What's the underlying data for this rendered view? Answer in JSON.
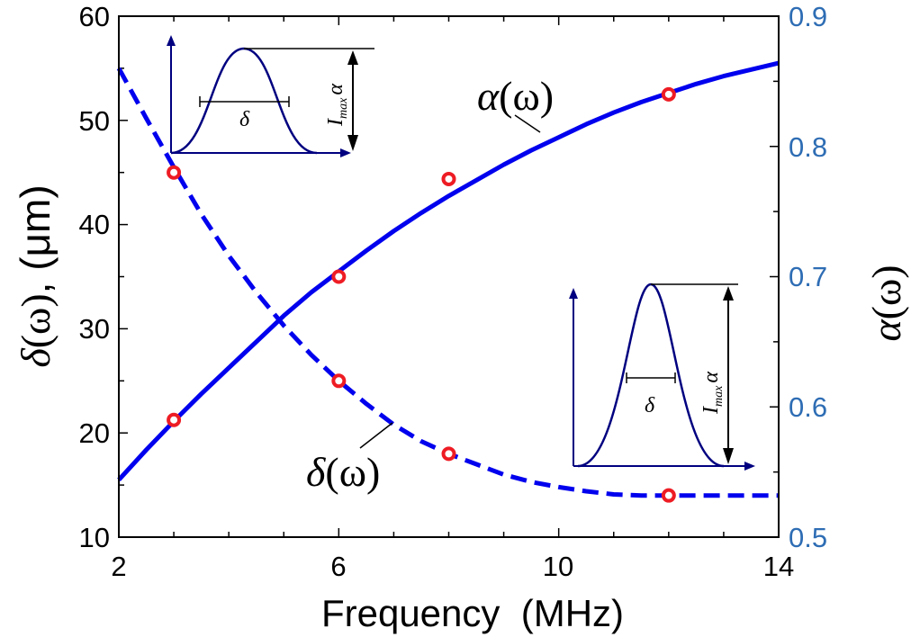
{
  "chart_data": {
    "type": "line",
    "xlabel": "Frequency  (MHz)",
    "ylabel_left": {
      "symbol": "δ",
      "arg": "(ω)",
      "unit": ", (μm)"
    },
    "ylabel_right": {
      "symbol": "α",
      "arg": "(ω)"
    },
    "xlim": [
      2,
      14
    ],
    "ylim_left": [
      10,
      60
    ],
    "ylim_right": [
      0.5,
      0.9
    ],
    "x_ticks": [
      "2",
      "6",
      "10",
      "14"
    ],
    "y_left_ticks": [
      "10",
      "20",
      "30",
      "40",
      "50",
      "60"
    ],
    "y_right_ticks": [
      "0.5",
      "0.6",
      "0.7",
      "0.8",
      "0.9"
    ],
    "colors": {
      "curve": "#0000ee",
      "markers": "#ee1c24",
      "right_axis": "#2e6db4",
      "axes": "#000000",
      "inset": "#000080"
    },
    "series": [
      {
        "name": "δ(ω)",
        "axis": "left",
        "style": "dashed",
        "x": [
          2,
          2.5,
          3,
          3.5,
          4,
          4.5,
          5,
          5.5,
          6,
          6.5,
          7,
          7.5,
          8,
          8.5,
          9,
          9.5,
          10,
          10.5,
          11,
          11.5,
          12,
          12.5,
          13,
          13.5,
          14
        ],
        "y": [
          55,
          50.2,
          45.5,
          41,
          37,
          33.5,
          30.3,
          27.5,
          25,
          22.8,
          20.8,
          19.2,
          18,
          17,
          16,
          15.3,
          14.8,
          14.4,
          14.1,
          14,
          14,
          14,
          14,
          14,
          14
        ]
      },
      {
        "name": "α(ω)",
        "axis": "right",
        "style": "solid",
        "x": [
          2,
          2.5,
          3,
          3.5,
          4,
          4.5,
          5,
          5.5,
          6,
          6.5,
          7,
          7.5,
          8,
          8.5,
          9,
          9.5,
          10,
          10.5,
          11,
          11.5,
          12,
          12.5,
          13,
          13.5,
          14
        ],
        "y": [
          0.544,
          0.567,
          0.589,
          0.61,
          0.63,
          0.65,
          0.67,
          0.688,
          0.704,
          0.72,
          0.735,
          0.749,
          0.762,
          0.774,
          0.786,
          0.797,
          0.807,
          0.817,
          0.826,
          0.834,
          0.841,
          0.848,
          0.854,
          0.859,
          0.864
        ]
      }
    ],
    "markers": {
      "delta": {
        "x": [
          3,
          6,
          8,
          12
        ],
        "y": [
          45,
          25,
          18,
          14
        ]
      },
      "alpha": {
        "x": [
          3,
          6,
          8,
          12
        ],
        "y": [
          0.59,
          0.7,
          0.775,
          0.84
        ]
      }
    },
    "curve_labels": {
      "alpha": {
        "symbol": "α",
        "arg": "(ω)"
      },
      "delta": {
        "symbol": "δ",
        "arg": "(ω)"
      }
    },
    "insets": {
      "width_symbol": "δ",
      "height_label": "I",
      "height_sub": "max",
      "height_symbol": "α"
    }
  }
}
